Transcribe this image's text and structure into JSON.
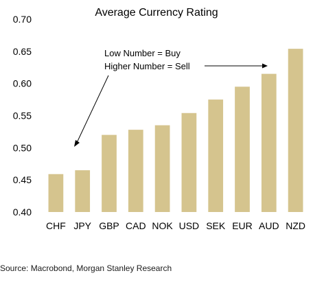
{
  "chart_data": {
    "type": "bar",
    "title": "Average Currency Rating",
    "xlabel": "",
    "ylabel": "",
    "categories": [
      "CHF",
      "JPY",
      "GBP",
      "CAD",
      "NOK",
      "USD",
      "SEK",
      "EUR",
      "AUD",
      "NZD"
    ],
    "values": [
      0.459,
      0.465,
      0.52,
      0.528,
      0.535,
      0.554,
      0.575,
      0.595,
      0.615,
      0.654
    ],
    "ylim": [
      0.4,
      0.7
    ],
    "yticks": [
      "0.40",
      "0.45",
      "0.50",
      "0.55",
      "0.60",
      "0.65",
      "0.70"
    ],
    "grid": false,
    "legend": "none",
    "bar_color": "#D5C48E",
    "annotations": [
      "Low Number = Buy",
      "Higher Number = Sell"
    ]
  },
  "source": "Source: Macrobond, Morgan Stanley Research"
}
